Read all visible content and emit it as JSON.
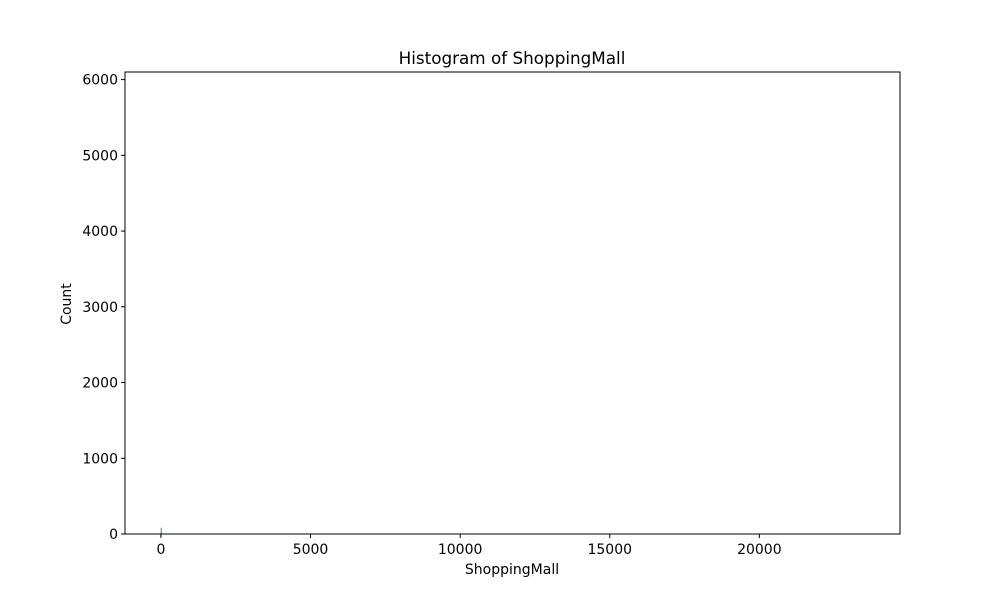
{
  "chart_data": {
    "type": "bar",
    "title": "Histogram of ShoppingMall",
    "xlabel": "ShoppingMall",
    "ylabel": "Count",
    "xlim": [
      -1200,
      24700
    ],
    "ylim": [
      0,
      6100
    ],
    "xticks": [
      0,
      5000,
      10000,
      15000,
      20000
    ],
    "yticks": [
      0,
      1000,
      2000,
      3000,
      4000,
      5000,
      6000
    ],
    "grid": false,
    "bar_color": "#1f77b4",
    "bins": [
      {
        "x0": 0,
        "x1": 12,
        "count": 80
      },
      {
        "x0": 12,
        "x1": 24,
        "count": 20
      },
      {
        "x0": 24,
        "x1": 36,
        "count": 6
      },
      {
        "x0": 36,
        "x1": 48,
        "count": 3
      },
      {
        "x0": 48,
        "x1": 60,
        "count": 2
      },
      {
        "x0": 60,
        "x1": 72,
        "count": 1
      }
    ]
  }
}
